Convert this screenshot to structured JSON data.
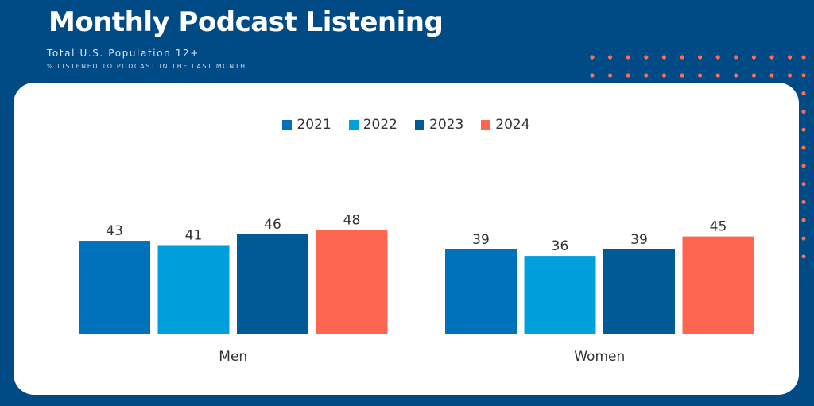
{
  "header": {
    "title": "Monthly Podcast Listening",
    "subtitle": "Total U.S. Population 12+",
    "note": "% LISTENED TO PODCAST IN THE LAST MONTH"
  },
  "colors": {
    "background": "#004a85",
    "card": "#ffffff",
    "dots": "#ff6b57"
  },
  "chart_data": {
    "type": "bar",
    "categories": [
      "Men",
      "Women"
    ],
    "series": [
      {
        "name": "2021",
        "values": [
          43,
          39
        ],
        "color": "#0072bc"
      },
      {
        "name": "2022",
        "values": [
          41,
          36
        ],
        "color": "#00a0dc"
      },
      {
        "name": "2023",
        "values": [
          46,
          39
        ],
        "color": "#005a96"
      },
      {
        "name": "2024",
        "values": [
          48,
          45
        ],
        "color": "#ff6652"
      }
    ],
    "ylim": [
      0,
      70
    ],
    "grid": false,
    "legend_position": "top-center",
    "xlabel": "",
    "ylabel": ""
  }
}
